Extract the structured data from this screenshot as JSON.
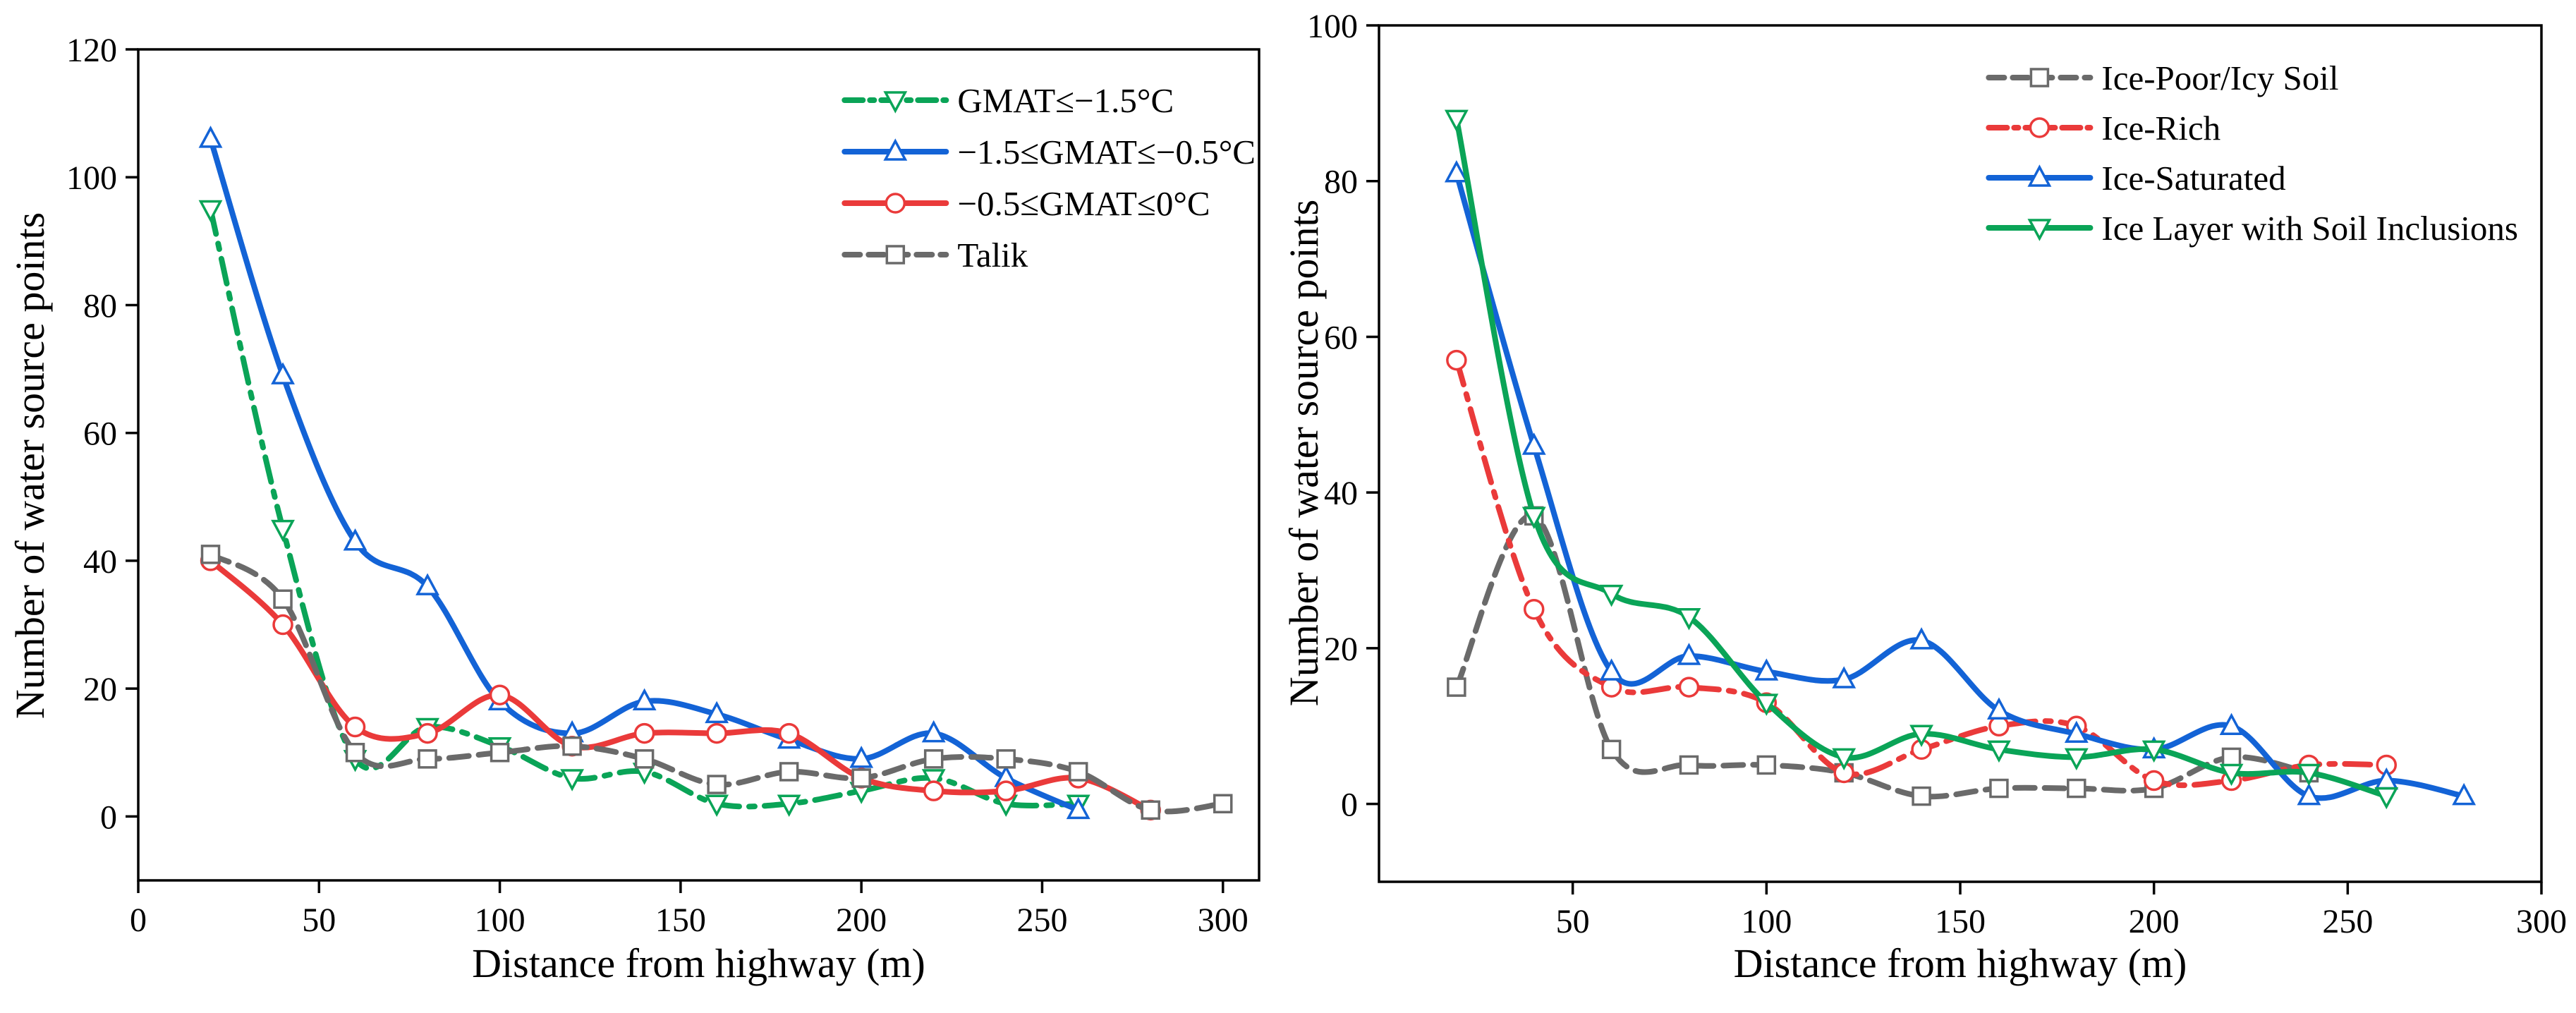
{
  "chart_data": [
    {
      "type": "line",
      "panel": "left",
      "title": "",
      "xlabel": "Distance from highway (m)",
      "ylabel": "Number of water source points",
      "xlim": [
        0,
        310
      ],
      "ylim": [
        -10,
        120
      ],
      "xticks": [
        0,
        50,
        100,
        150,
        200,
        250,
        300
      ],
      "yticks": [
        0,
        20,
        40,
        60,
        80,
        100,
        120
      ],
      "legend_position": "top-right",
      "series": [
        {
          "name": "GMAT≤−1.5°C",
          "color": "#0aa457",
          "marker": "triangle-down",
          "dash": "dashdot",
          "x": [
            20,
            40,
            60,
            80,
            100,
            120,
            140,
            160,
            180,
            200,
            220,
            240,
            260
          ],
          "y": [
            95,
            45,
            9,
            14,
            11,
            6,
            7,
            2,
            2,
            4,
            6,
            2,
            2
          ]
        },
        {
          "name": "−1.5≤GMAT≤−0.5°C",
          "color": "#1363d6",
          "marker": "triangle-up",
          "dash": "solid",
          "x": [
            20,
            40,
            60,
            80,
            100,
            120,
            140,
            160,
            180,
            200,
            220,
            240,
            260
          ],
          "y": [
            106,
            69,
            43,
            36,
            18,
            13,
            18,
            16,
            12,
            9,
            13,
            6,
            1
          ]
        },
        {
          "name": "−0.5≤GMAT≤0°C",
          "color": "#ea3a3a",
          "marker": "circle",
          "dash": "solid",
          "x": [
            20,
            40,
            60,
            80,
            100,
            120,
            140,
            160,
            180,
            200,
            220,
            240,
            260,
            280
          ],
          "y": [
            40,
            30,
            14,
            13,
            19,
            11,
            13,
            13,
            13,
            6,
            4,
            4,
            6,
            1
          ]
        },
        {
          "name": "Talik",
          "color": "#6a6a6a",
          "marker": "square",
          "dash": "dash",
          "x": [
            20,
            40,
            60,
            80,
            100,
            120,
            140,
            160,
            180,
            200,
            220,
            240,
            260,
            280,
            300
          ],
          "y": [
            41,
            34,
            10,
            9,
            10,
            11,
            9,
            5,
            7,
            6,
            9,
            9,
            7,
            1,
            2
          ]
        }
      ]
    },
    {
      "type": "line",
      "panel": "right",
      "title": "",
      "xlabel": "Distance from highway (m)",
      "ylabel": "Number of water source points",
      "xlim": [
        0,
        300
      ],
      "ylim": [
        -10,
        100
      ],
      "xticks": [
        50,
        100,
        150,
        200,
        250,
        300
      ],
      "yticks": [
        0,
        20,
        40,
        60,
        80,
        100
      ],
      "legend_position": "top-right",
      "series": [
        {
          "name": "Ice-Poor/Icy Soil",
          "color": "#6a6a6a",
          "marker": "square",
          "dash": "dash",
          "x": [
            20,
            40,
            60,
            80,
            100,
            120,
            140,
            160,
            180,
            200,
            220,
            240
          ],
          "y": [
            15,
            37,
            7,
            5,
            5,
            4,
            1,
            2,
            2,
            2,
            6,
            4
          ]
        },
        {
          "name": "Ice-Rich",
          "color": "#ea3a3a",
          "marker": "circle",
          "dash": "dashdot",
          "x": [
            20,
            40,
            60,
            80,
            100,
            120,
            140,
            160,
            180,
            200,
            220,
            240,
            260
          ],
          "y": [
            57,
            25,
            15,
            15,
            13,
            4,
            7,
            10,
            10,
            3,
            3,
            5,
            5
          ]
        },
        {
          "name": "Ice-Saturated",
          "color": "#1363d6",
          "marker": "triangle-up",
          "dash": "solid",
          "x": [
            20,
            40,
            60,
            80,
            100,
            120,
            140,
            160,
            180,
            200,
            220,
            240,
            260,
            280
          ],
          "y": [
            81,
            46,
            17,
            19,
            17,
            16,
            21,
            12,
            9,
            7,
            10,
            1,
            3,
            1
          ]
        },
        {
          "name": "Ice Layer with Soil Inclusions",
          "color": "#0aa457",
          "marker": "triangle-down",
          "dash": "solid",
          "x": [
            20,
            40,
            60,
            80,
            100,
            120,
            140,
            160,
            180,
            200,
            220,
            240,
            260
          ],
          "y": [
            88,
            37,
            27,
            24,
            13,
            6,
            9,
            7,
            6,
            7,
            4,
            4,
            1
          ]
        }
      ]
    }
  ]
}
